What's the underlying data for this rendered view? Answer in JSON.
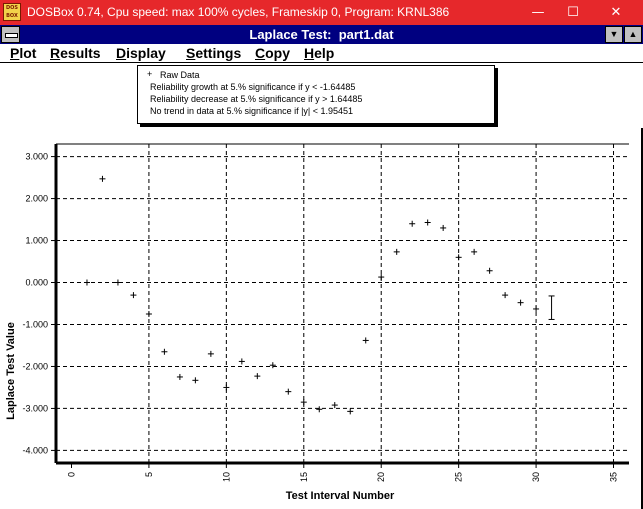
{
  "host_window": {
    "title": "DOSBox 0.74, Cpu speed: max 100% cycles, Frameskip  0, Program:  KRNL386",
    "icon_text": "DOS BOX",
    "minimize_glyph": "—",
    "maximize_glyph": "☐",
    "close_glyph": "✕"
  },
  "app_window": {
    "title": "Laplace Test:  part1.dat",
    "scroll_up_glyph": "▲",
    "scroll_down_glyph": "▼"
  },
  "menu": [
    "Plot",
    "Results",
    "Display",
    "Settings",
    "Copy",
    "Help"
  ],
  "legend": {
    "marker": "+",
    "items": [
      "Raw Data",
      "Reliability growth at 5.% significance if y < -1.64485",
      "Reliability decrease at 5.% significance if y > 1.64485",
      "No trend in data at 5.% significance if |y| < 1.95451"
    ]
  },
  "chart_data": {
    "type": "scatter",
    "xlabel": "Test Interval Number",
    "ylabel": "Laplace Test Value",
    "xlim": [
      -1,
      36
    ],
    "ylim": [
      -4.3,
      3.3
    ],
    "x_ticks": [
      "0",
      "5",
      "10",
      "15",
      "20",
      "25",
      "30",
      "35"
    ],
    "x_tick_values": [
      0,
      5,
      10,
      15,
      20,
      25,
      30,
      35
    ],
    "y_ticks": [
      "3.000",
      "2.000",
      "1.000",
      "0.000",
      "-1.000",
      "-2.000",
      "-3.000",
      "-4.000"
    ],
    "y_tick_values": [
      3,
      2,
      1,
      0,
      -1,
      -2,
      -3,
      -4
    ],
    "grid": true,
    "legend_position": "top-center",
    "series": [
      {
        "name": "Raw Data",
        "marker": "+",
        "points": [
          [
            1,
            0.0
          ],
          [
            2,
            2.47
          ],
          [
            3,
            0.0
          ],
          [
            4,
            -0.3
          ],
          [
            5,
            -0.75
          ],
          [
            6,
            -1.65
          ],
          [
            7,
            -2.25
          ],
          [
            8,
            -2.33
          ],
          [
            9,
            -1.7
          ],
          [
            10,
            -2.5
          ],
          [
            11,
            -1.88
          ],
          [
            12,
            -2.23
          ],
          [
            13,
            -1.97
          ],
          [
            14,
            -2.6
          ],
          [
            15,
            -2.85
          ],
          [
            16,
            -3.02
          ],
          [
            17,
            -2.92
          ],
          [
            18,
            -3.07
          ],
          [
            19,
            -1.38
          ],
          [
            20,
            0.13
          ],
          [
            21,
            0.73
          ],
          [
            22,
            1.4
          ],
          [
            23,
            1.43
          ],
          [
            24,
            1.3
          ],
          [
            25,
            0.6
          ],
          [
            26,
            0.73
          ],
          [
            27,
            0.28
          ],
          [
            28,
            -0.3
          ],
          [
            29,
            -0.48
          ],
          [
            30,
            -0.63
          ]
        ]
      }
    ],
    "error_bar": {
      "x": 31,
      "low": -0.88,
      "high": -0.32
    },
    "colors": {
      "axis": "#000000",
      "grid": "#000000",
      "marker": "#000000",
      "background": "#ffffff"
    }
  }
}
